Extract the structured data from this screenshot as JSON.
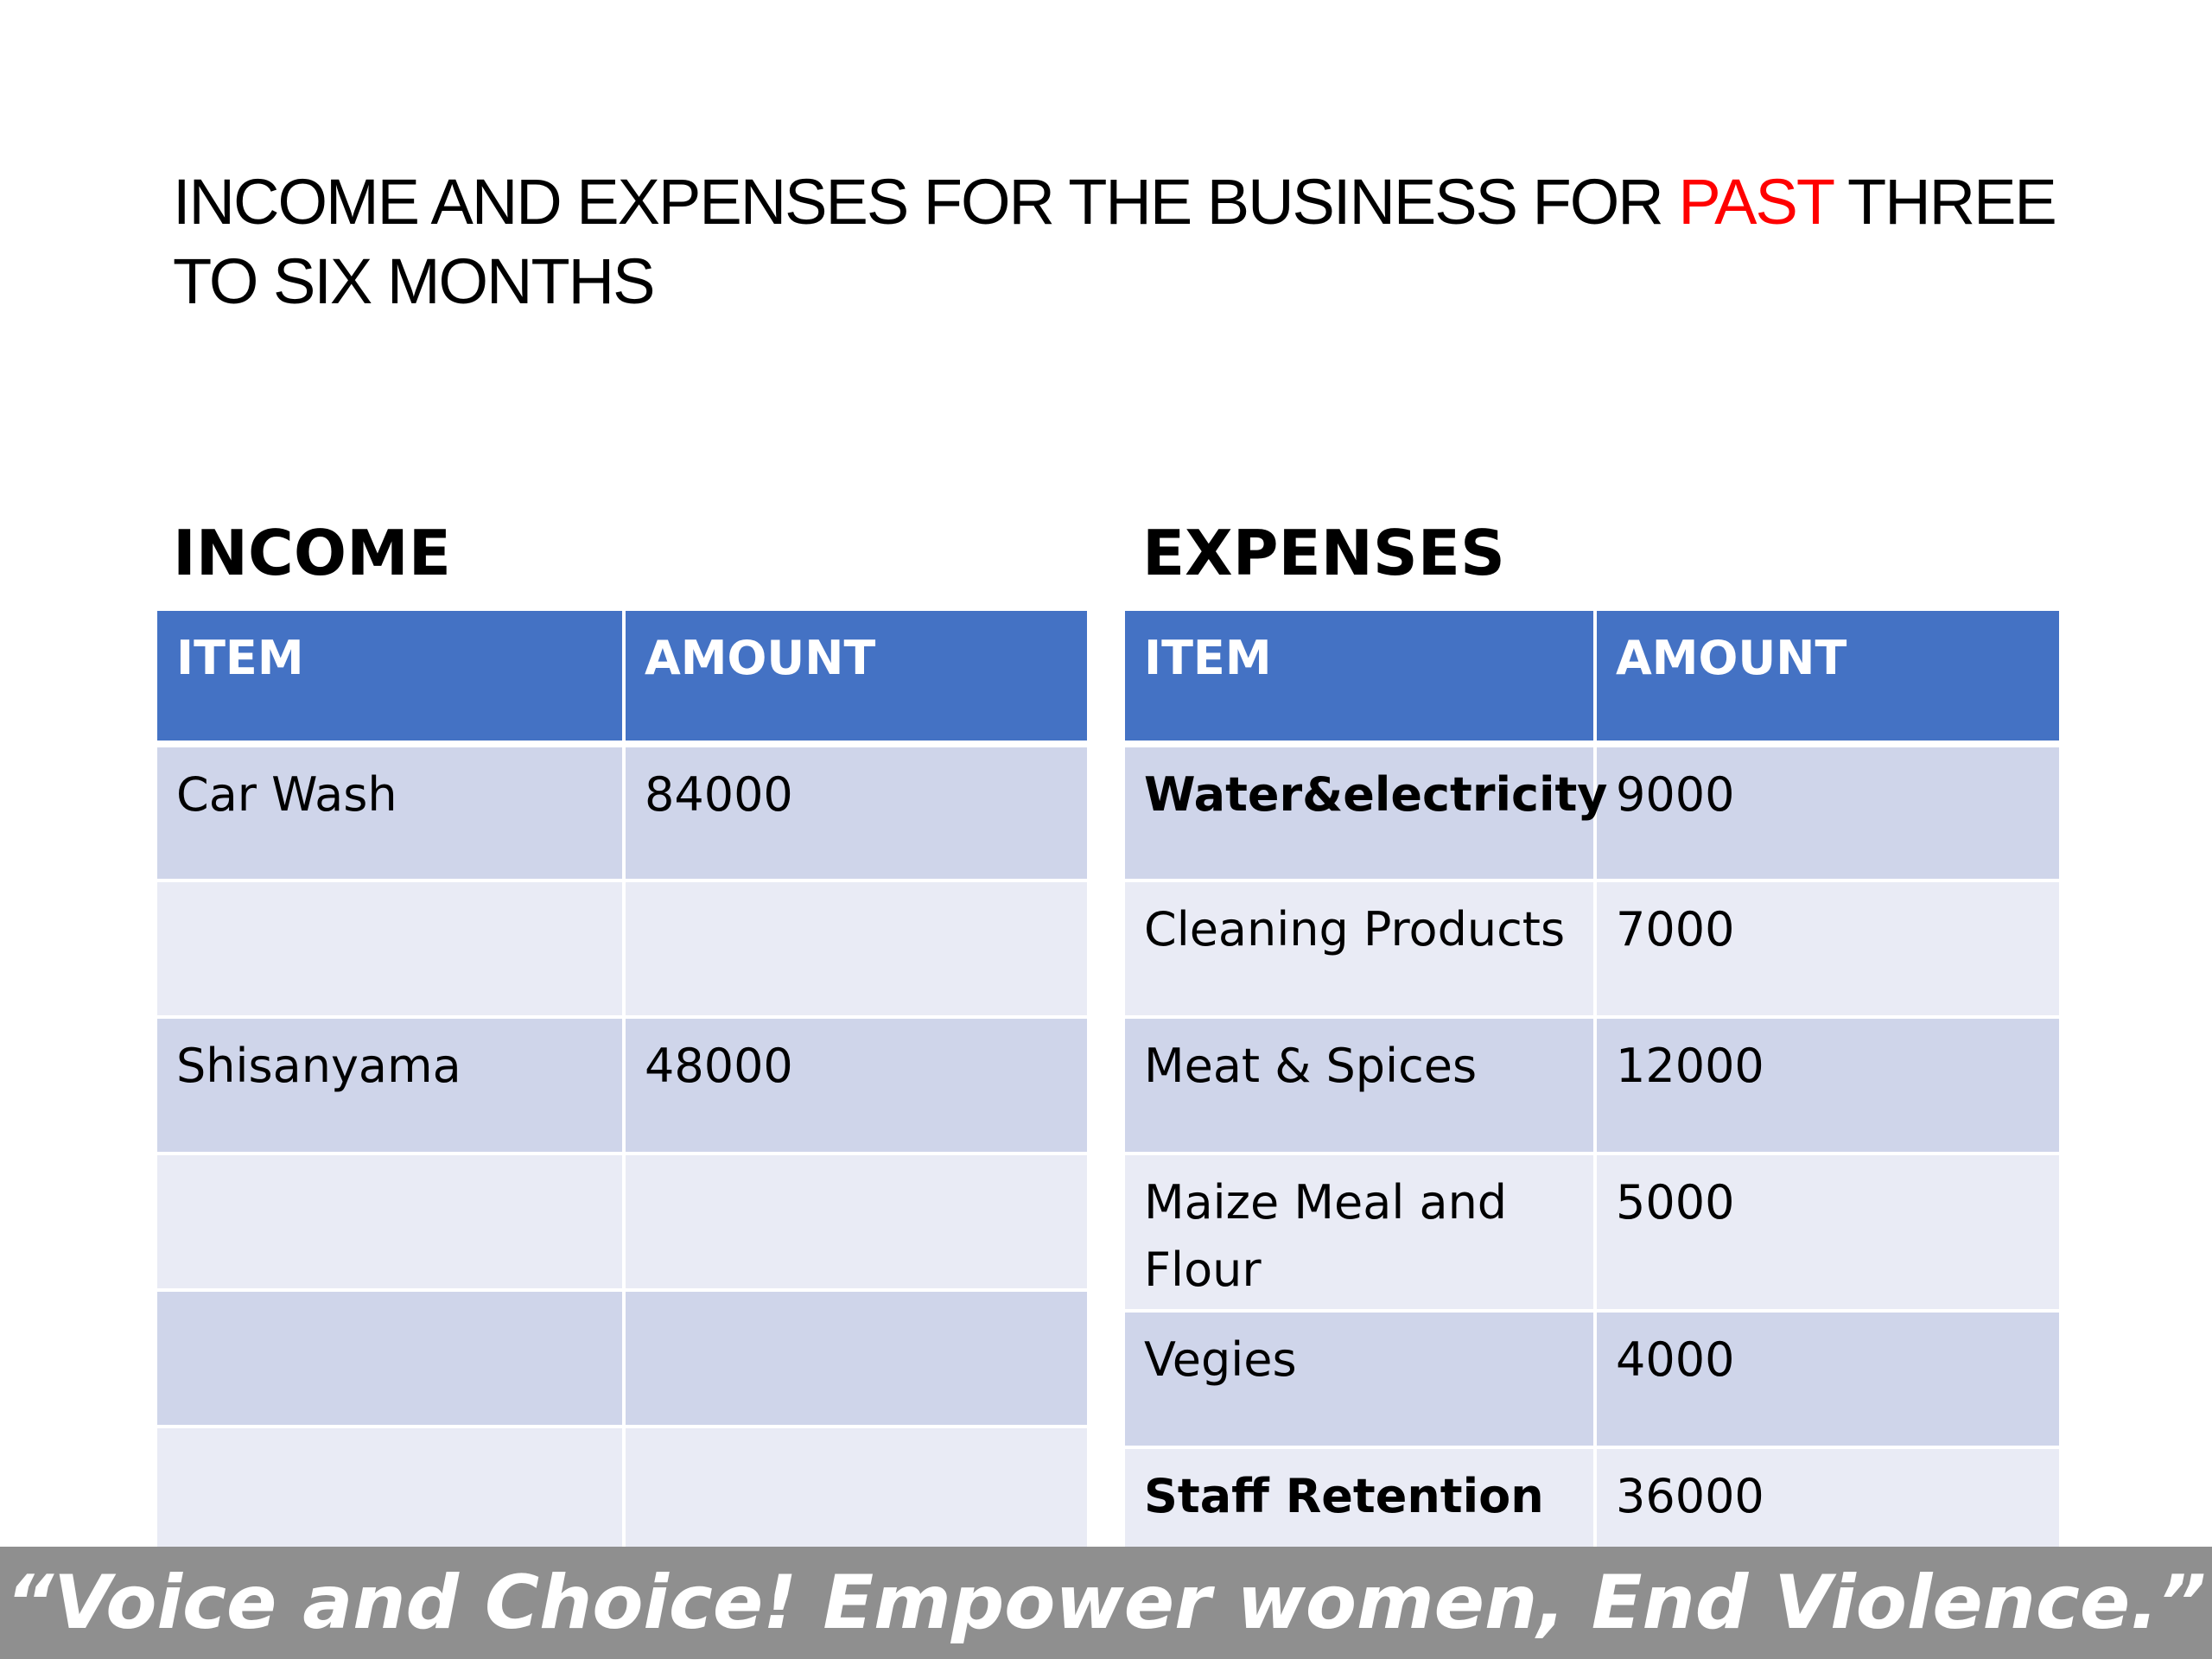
{
  "title": {
    "part1": "INCOME AND EXPENSES FOR THE BUSINESS FOR ",
    "accent": "PAST",
    "part2": "  THREE TO SIX MONTHS",
    "accent_color": "#ff0000"
  },
  "income": {
    "heading": "INCOME",
    "headers": [
      "ITEM",
      "AMOUNT"
    ],
    "rows": [
      {
        "item": "Car Wash",
        "amount": "84000"
      },
      {
        "item": "",
        "amount": ""
      },
      {
        "item": "Shisanyama",
        "amount": "48000"
      },
      {
        "item": "",
        "amount": ""
      },
      {
        "item": "",
        "amount": ""
      },
      {
        "item": "",
        "amount": ""
      }
    ]
  },
  "expenses": {
    "heading": "EXPENSES",
    "headers": [
      "ITEM",
      "AMOUNT"
    ],
    "rows": [
      {
        "item": "Water&electricity",
        "amount": "9000"
      },
      {
        "item": "Cleaning Products",
        "amount": "7000"
      },
      {
        "item": "Meat & Spices",
        "amount": "12000"
      },
      {
        "item": "Maize Meal and Flour",
        "amount": "5000"
      },
      {
        "item": "Vegies",
        "amount": "4000"
      },
      {
        "item": "Staff Retention",
        "amount": "36000"
      }
    ]
  },
  "footer": {
    "quote": "“Voice and Choice! Empower women, End Violence.”"
  },
  "colors": {
    "header_fill": "#4472c4",
    "row_dark": "#cfd5ea",
    "row_light": "#e9ebf5",
    "footer_band": "#8f8f8f"
  }
}
